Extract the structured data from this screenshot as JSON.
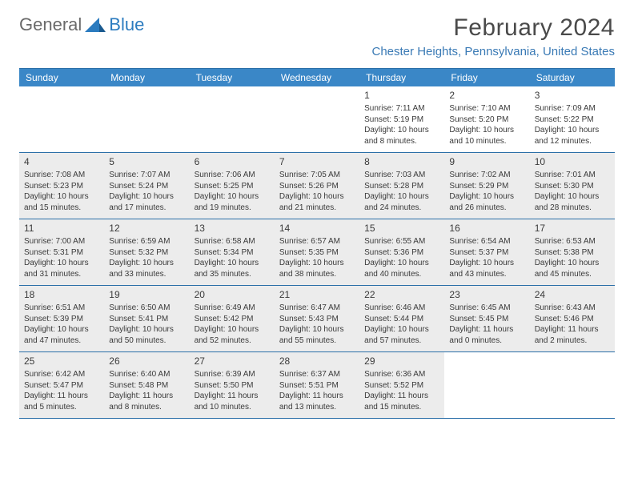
{
  "logo": {
    "text_general": "General",
    "text_blue": "Blue"
  },
  "title": "February 2024",
  "location": "Chester Heights, Pennsylvania, United States",
  "colors": {
    "header_bg": "#3a87c7",
    "header_text": "#ffffff",
    "border": "#2b6fa8",
    "shaded_bg": "#ececec",
    "title_color": "#4a4a4a",
    "location_color": "#3a7ab5",
    "logo_grey": "#6a6a6a",
    "logo_blue": "#2b7bbf"
  },
  "day_names": [
    "Sunday",
    "Monday",
    "Tuesday",
    "Wednesday",
    "Thursday",
    "Friday",
    "Saturday"
  ],
  "weeks": [
    [
      {
        "num": "",
        "sunrise": "",
        "sunset": "",
        "daylight": "",
        "shaded": false
      },
      {
        "num": "",
        "sunrise": "",
        "sunset": "",
        "daylight": "",
        "shaded": false
      },
      {
        "num": "",
        "sunrise": "",
        "sunset": "",
        "daylight": "",
        "shaded": false
      },
      {
        "num": "",
        "sunrise": "",
        "sunset": "",
        "daylight": "",
        "shaded": false
      },
      {
        "num": "1",
        "sunrise": "Sunrise: 7:11 AM",
        "sunset": "Sunset: 5:19 PM",
        "daylight": "Daylight: 10 hours and 8 minutes.",
        "shaded": false
      },
      {
        "num": "2",
        "sunrise": "Sunrise: 7:10 AM",
        "sunset": "Sunset: 5:20 PM",
        "daylight": "Daylight: 10 hours and 10 minutes.",
        "shaded": false
      },
      {
        "num": "3",
        "sunrise": "Sunrise: 7:09 AM",
        "sunset": "Sunset: 5:22 PM",
        "daylight": "Daylight: 10 hours and 12 minutes.",
        "shaded": false
      }
    ],
    [
      {
        "num": "4",
        "sunrise": "Sunrise: 7:08 AM",
        "sunset": "Sunset: 5:23 PM",
        "daylight": "Daylight: 10 hours and 15 minutes.",
        "shaded": true
      },
      {
        "num": "5",
        "sunrise": "Sunrise: 7:07 AM",
        "sunset": "Sunset: 5:24 PM",
        "daylight": "Daylight: 10 hours and 17 minutes.",
        "shaded": true
      },
      {
        "num": "6",
        "sunrise": "Sunrise: 7:06 AM",
        "sunset": "Sunset: 5:25 PM",
        "daylight": "Daylight: 10 hours and 19 minutes.",
        "shaded": true
      },
      {
        "num": "7",
        "sunrise": "Sunrise: 7:05 AM",
        "sunset": "Sunset: 5:26 PM",
        "daylight": "Daylight: 10 hours and 21 minutes.",
        "shaded": true
      },
      {
        "num": "8",
        "sunrise": "Sunrise: 7:03 AM",
        "sunset": "Sunset: 5:28 PM",
        "daylight": "Daylight: 10 hours and 24 minutes.",
        "shaded": true
      },
      {
        "num": "9",
        "sunrise": "Sunrise: 7:02 AM",
        "sunset": "Sunset: 5:29 PM",
        "daylight": "Daylight: 10 hours and 26 minutes.",
        "shaded": true
      },
      {
        "num": "10",
        "sunrise": "Sunrise: 7:01 AM",
        "sunset": "Sunset: 5:30 PM",
        "daylight": "Daylight: 10 hours and 28 minutes.",
        "shaded": true
      }
    ],
    [
      {
        "num": "11",
        "sunrise": "Sunrise: 7:00 AM",
        "sunset": "Sunset: 5:31 PM",
        "daylight": "Daylight: 10 hours and 31 minutes.",
        "shaded": true
      },
      {
        "num": "12",
        "sunrise": "Sunrise: 6:59 AM",
        "sunset": "Sunset: 5:32 PM",
        "daylight": "Daylight: 10 hours and 33 minutes.",
        "shaded": true
      },
      {
        "num": "13",
        "sunrise": "Sunrise: 6:58 AM",
        "sunset": "Sunset: 5:34 PM",
        "daylight": "Daylight: 10 hours and 35 minutes.",
        "shaded": true
      },
      {
        "num": "14",
        "sunrise": "Sunrise: 6:57 AM",
        "sunset": "Sunset: 5:35 PM",
        "daylight": "Daylight: 10 hours and 38 minutes.",
        "shaded": true
      },
      {
        "num": "15",
        "sunrise": "Sunrise: 6:55 AM",
        "sunset": "Sunset: 5:36 PM",
        "daylight": "Daylight: 10 hours and 40 minutes.",
        "shaded": true
      },
      {
        "num": "16",
        "sunrise": "Sunrise: 6:54 AM",
        "sunset": "Sunset: 5:37 PM",
        "daylight": "Daylight: 10 hours and 43 minutes.",
        "shaded": true
      },
      {
        "num": "17",
        "sunrise": "Sunrise: 6:53 AM",
        "sunset": "Sunset: 5:38 PM",
        "daylight": "Daylight: 10 hours and 45 minutes.",
        "shaded": true
      }
    ],
    [
      {
        "num": "18",
        "sunrise": "Sunrise: 6:51 AM",
        "sunset": "Sunset: 5:39 PM",
        "daylight": "Daylight: 10 hours and 47 minutes.",
        "shaded": true
      },
      {
        "num": "19",
        "sunrise": "Sunrise: 6:50 AM",
        "sunset": "Sunset: 5:41 PM",
        "daylight": "Daylight: 10 hours and 50 minutes.",
        "shaded": true
      },
      {
        "num": "20",
        "sunrise": "Sunrise: 6:49 AM",
        "sunset": "Sunset: 5:42 PM",
        "daylight": "Daylight: 10 hours and 52 minutes.",
        "shaded": true
      },
      {
        "num": "21",
        "sunrise": "Sunrise: 6:47 AM",
        "sunset": "Sunset: 5:43 PM",
        "daylight": "Daylight: 10 hours and 55 minutes.",
        "shaded": true
      },
      {
        "num": "22",
        "sunrise": "Sunrise: 6:46 AM",
        "sunset": "Sunset: 5:44 PM",
        "daylight": "Daylight: 10 hours and 57 minutes.",
        "shaded": true
      },
      {
        "num": "23",
        "sunrise": "Sunrise: 6:45 AM",
        "sunset": "Sunset: 5:45 PM",
        "daylight": "Daylight: 11 hours and 0 minutes.",
        "shaded": true
      },
      {
        "num": "24",
        "sunrise": "Sunrise: 6:43 AM",
        "sunset": "Sunset: 5:46 PM",
        "daylight": "Daylight: 11 hours and 2 minutes.",
        "shaded": true
      }
    ],
    [
      {
        "num": "25",
        "sunrise": "Sunrise: 6:42 AM",
        "sunset": "Sunset: 5:47 PM",
        "daylight": "Daylight: 11 hours and 5 minutes.",
        "shaded": true
      },
      {
        "num": "26",
        "sunrise": "Sunrise: 6:40 AM",
        "sunset": "Sunset: 5:48 PM",
        "daylight": "Daylight: 11 hours and 8 minutes.",
        "shaded": true
      },
      {
        "num": "27",
        "sunrise": "Sunrise: 6:39 AM",
        "sunset": "Sunset: 5:50 PM",
        "daylight": "Daylight: 11 hours and 10 minutes.",
        "shaded": true
      },
      {
        "num": "28",
        "sunrise": "Sunrise: 6:37 AM",
        "sunset": "Sunset: 5:51 PM",
        "daylight": "Daylight: 11 hours and 13 minutes.",
        "shaded": true
      },
      {
        "num": "29",
        "sunrise": "Sunrise: 6:36 AM",
        "sunset": "Sunset: 5:52 PM",
        "daylight": "Daylight: 11 hours and 15 minutes.",
        "shaded": true
      },
      {
        "num": "",
        "sunrise": "",
        "sunset": "",
        "daylight": "",
        "shaded": false
      },
      {
        "num": "",
        "sunrise": "",
        "sunset": "",
        "daylight": "",
        "shaded": false
      }
    ]
  ]
}
